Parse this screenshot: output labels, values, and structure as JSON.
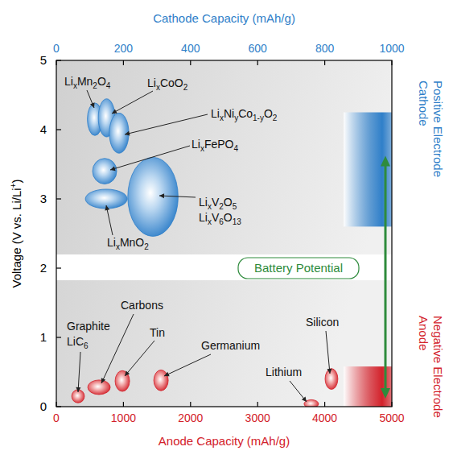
{
  "chart_data": {
    "type": "bubble",
    "x_label": "Anode Capacity (mAh/g)",
    "x2_label": "Cathode Capacity (mAh/g)",
    "y_label": "Voltage (V vs. Li/Li+)",
    "xlim": [
      0,
      5000
    ],
    "xticks": [
      0,
      1000,
      2000,
      3000,
      4000,
      5000
    ],
    "x2lim": [
      0,
      1000
    ],
    "x2ticks": [
      0,
      200,
      400,
      600,
      800,
      1000
    ],
    "ylim": [
      0,
      5
    ],
    "yticks": [
      0,
      1,
      2,
      3,
      4,
      5
    ],
    "annotation": "Battery Potential",
    "series": [
      {
        "name": "Cathode",
        "electrode": "Positive Electrode",
        "axis": "x2",
        "color": "#2f7fc9",
        "labels": [
          "LixMn2O4",
          "LixCoO2",
          "LixNiyCo1-yO2",
          "LixFePO4",
          "LixMnO2",
          [
            "LixV2O5",
            "LixV6O13"
          ]
        ],
        "x": [
          115,
          150,
          187,
          144,
          149,
          288
        ],
        "values": [
          4.15,
          4.17,
          3.95,
          3.4,
          3.0,
          3.03
        ],
        "width": [
          45,
          50,
          58,
          72,
          125,
          150
        ],
        "height": [
          0.47,
          0.55,
          0.58,
          0.37,
          0.28,
          1.14
        ],
        "range": [
          2.6,
          4.25
        ]
      },
      {
        "name": "Anode",
        "electrode": "Negative Electrode",
        "color": "#d3222b",
        "labels": [
          [
            "Graphite",
            "LiC6"
          ],
          "Carbons",
          "Tin",
          "Germanium",
          "Lithium",
          "Silicon"
        ],
        "x": [
          324,
          636,
          984,
          1560,
          3800,
          4100
        ],
        "values": [
          0.15,
          0.28,
          0.37,
          0.38,
          0.04,
          0.4
        ],
        "width": [
          190,
          336,
          216,
          216,
          216,
          190
        ],
        "height": [
          0.19,
          0.21,
          0.3,
          0.3,
          0.12,
          0.3
        ],
        "range": [
          0,
          0.58
        ]
      }
    ]
  }
}
